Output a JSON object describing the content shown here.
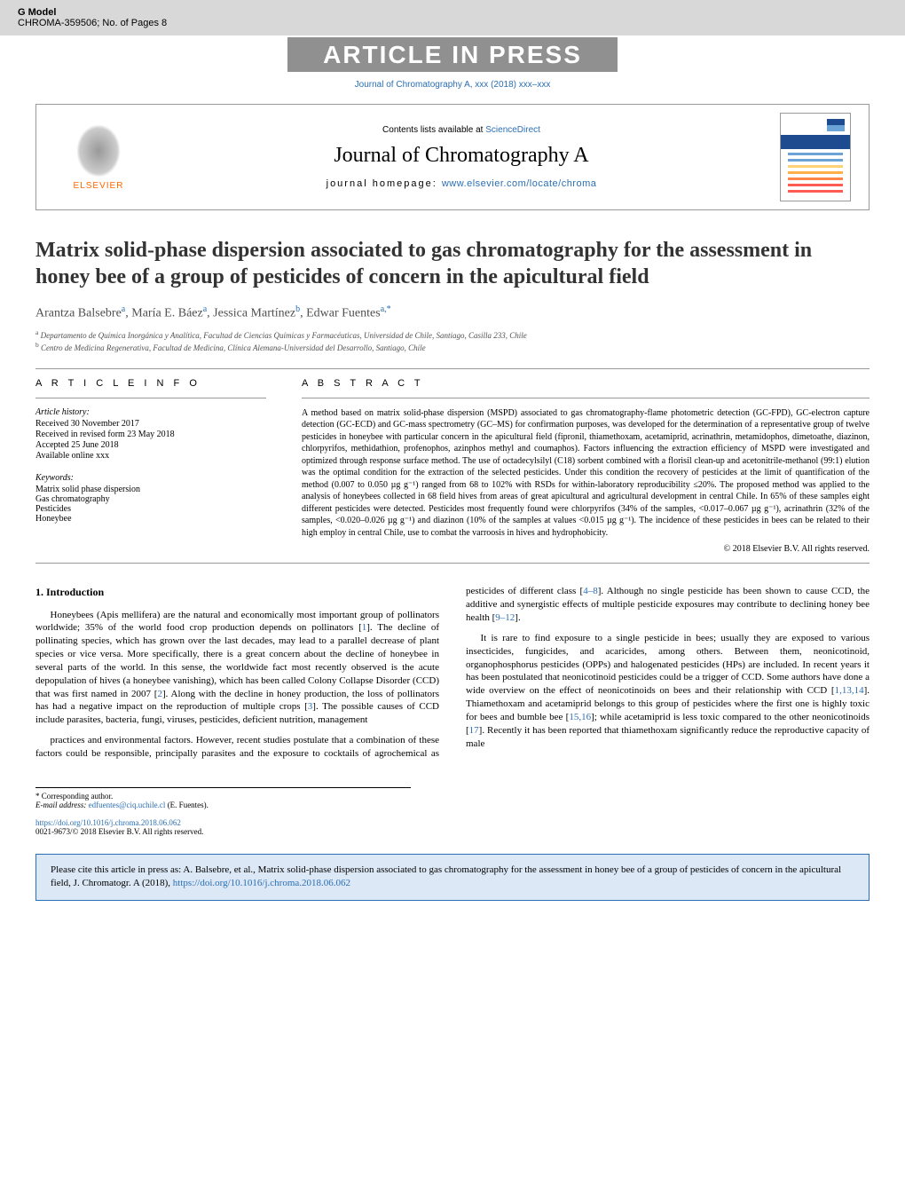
{
  "gmodel": {
    "label": "G Model",
    "code": "CHROMA-359506;",
    "pages": "No. of Pages 8"
  },
  "aip_banner": "ARTICLE IN PRESS",
  "journal_link_text": "Journal of Chromatography A, xxx (2018) xxx–xxx",
  "header": {
    "contents_text": "Contents lists available at",
    "contents_link": "ScienceDirect",
    "journal_name": "Journal of Chromatography A",
    "homepage_label": "journal homepage:",
    "homepage_url": "www.elsevier.com/locate/chroma",
    "elsevier_text": "ELSEVIER",
    "cover_line_colors": [
      "#6ba3d6",
      "#6ba3d6",
      "#ffd279",
      "#ffb04a",
      "#ff8548",
      "#ff5b52",
      "#ff5b52"
    ]
  },
  "article": {
    "title": "Matrix solid-phase dispersion associated to gas chromatography for the assessment in honey bee of a group of pesticides of concern in the apicultural field",
    "authors": [
      {
        "name": "Arantza Balsebre",
        "aff": "a"
      },
      {
        "name": "María E. Báez",
        "aff": "a"
      },
      {
        "name": "Jessica Martínez",
        "aff": "b"
      },
      {
        "name": "Edwar Fuentes",
        "aff": "a,*"
      }
    ],
    "affiliations": [
      {
        "key": "a",
        "text": "Departamento de Química Inorgánica y Analítica, Facultad de Ciencias Químicas y Farmacéuticas, Universidad de Chile, Santiago, Casilla 233, Chile"
      },
      {
        "key": "b",
        "text": "Centro de Medicina Regenerativa, Facultad de Medicina, Clínica Alemana-Universidad del Desarrollo, Santiago, Chile"
      }
    ]
  },
  "article_info": {
    "heading": "A R T I C L E   I N F O",
    "history_label": "Article history:",
    "history": [
      "Received 30 November 2017",
      "Received in revised form 23 May 2018",
      "Accepted 25 June 2018",
      "Available online xxx"
    ],
    "keywords_label": "Keywords:",
    "keywords": [
      "Matrix solid phase dispersion",
      "Gas chromatography",
      "Pesticides",
      "Honeybee"
    ]
  },
  "abstract": {
    "heading": "A B S T R A C T",
    "text": "A method based on matrix solid-phase dispersion (MSPD) associated to gas chromatography-flame photometric detection (GC-FPD), GC-electron capture detection (GC-ECD) and GC-mass spectrometry (GC–MS) for confirmation purposes, was developed for the determination of a representative group of twelve pesticides in honeybee with particular concern in the apicultural field (fipronil, thiamethoxam, acetamiprid, acrinathrin, metamidophos, dimetoathe, diazinon, chlorpyrifos, methidathion, profenophos, azinphos methyl and coumaphos). Factors influencing the extraction efficiency of MSPD were investigated and optimized through response surface method. The use of octadecylsilyl (C18) sorbent combined with a florisil clean-up and acetonitrile-methanol (99:1) elution was the optimal condition for the extraction of the selected pesticides. Under this condition the recovery of pesticides at the limit of quantification of the method (0.007 to 0.050 µg g⁻¹) ranged from 68 to 102% with RSDs for within-laboratory reproducibility ≤20%. The proposed method was applied to the analysis of honeybees collected in 68 field hives from areas of great apicultural and agricultural development in central Chile. In 65% of these samples eight different pesticides were detected. Pesticides most frequently found were chlorpyrifos (34% of the samples, <0.017–0.067 µg g⁻¹), acrinathrin (32% of the samples, <0.020–0.026 µg g⁻¹) and diazinon (10% of the samples at values <0.015 µg g⁻¹). The incidence of these pesticides in bees can be related to their high employ in central Chile, use to combat the varroosis in hives and hydrophobicity.",
    "copyright": "© 2018 Elsevier B.V. All rights reserved."
  },
  "intro": {
    "heading": "1. Introduction",
    "para1": "Honeybees (Apis mellifera) are the natural and economically most important group of pollinators worldwide; 35% of the world food crop production depends on pollinators [1]. The decline of pollinating species, which has grown over the last decades, may lead to a parallel decrease of plant species or vice versa. More specifically, there is a great concern about the decline of honeybee in several parts of the world. In this sense, the worldwide fact most recently observed is the acute depopulation of hives (a honeybee vanishing), which has been called Colony Collapse Disorder (CCD) that was first named in 2007 [2]. Along with the decline in honey production, the loss of pollinators has had a negative impact on the reproduction of multiple crops [3]. The possible causes of CCD include parasites, bacteria, fungi, viruses, pesticides, deficient nutrition, management",
    "para2": "practices and environmental factors. However, recent studies postulate that a combination of these factors could be responsible, principally parasites and the exposure to cocktails of agrochemical as pesticides of different class [4–8]. Although no single pesticide has been shown to cause CCD, the additive and synergistic effects of multiple pesticide exposures may contribute to declining honey bee health [9–12].",
    "para3": "It is rare to find exposure to a single pesticide in bees; usually they are exposed to various insecticides, fungicides, and acaricides, among others. Between them, neonicotinoid, organophosphorus pesticides (OPPs) and halogenated pesticides (HPs) are included. In recent years it has been postulated that neonicotinoid pesticides could be a trigger of CCD. Some authors have done a wide overview on the effect of neonicotinoids on bees and their relationship with CCD [1,13,14]. Thiamethoxam and acetamiprid belongs to this group of pesticides where the first one is highly toxic for bees and bumble bee [15,16]; while acetamiprid is less toxic compared to the other neonicotinoids [17]. Recently it has been reported that thiamethoxam significantly reduce the reproductive capacity of male"
  },
  "corresponding": {
    "label": "* Corresponding author.",
    "email_label": "E-mail address:",
    "email": "edfuentes@ciq.uchile.cl",
    "name": "(E. Fuentes)."
  },
  "doi_footer": {
    "doi": "https://doi.org/10.1016/j.chroma.2018.06.062",
    "issn": "0021-9673/© 2018 Elsevier B.V. All rights reserved."
  },
  "citation_box": {
    "text_prefix": "Please cite this article in press as: A. Balsebre, et al., Matrix solid-phase dispersion associated to gas chromatography for the assessment in honey bee of a group of pesticides of concern in the apicultural field, J. Chromatogr. A (2018),",
    "doi": "https://doi.org/10.1016/j.chroma.2018.06.062"
  },
  "refs": {
    "r1": "1",
    "r2": "2",
    "r3": "3",
    "r4_8": "4–8",
    "r9_12": "9–12",
    "r1_13_14": "1,13,14",
    "r15_16": "15,16",
    "r17": "17"
  }
}
